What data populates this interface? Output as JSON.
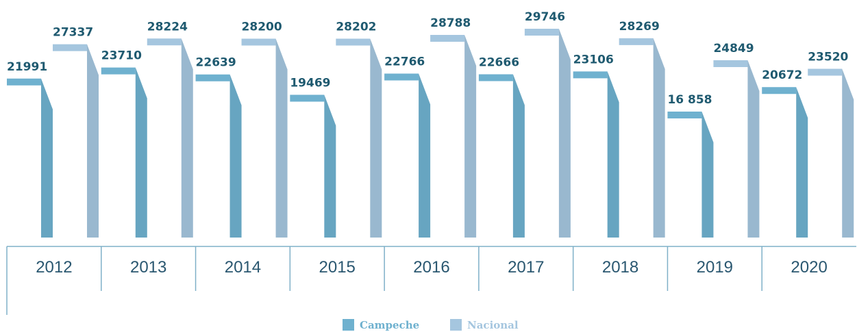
{
  "chart_data": {
    "type": "bar",
    "categories": [
      "2012",
      "2013",
      "2014",
      "2015",
      "2016",
      "2017",
      "2018",
      "2019",
      "2020"
    ],
    "series": [
      {
        "name": "Campeche",
        "color": "#6fb1cf",
        "values": [
          21991,
          23710,
          22639,
          19469,
          22766,
          22666,
          23106,
          16858,
          20672
        ],
        "value_labels": [
          "21991",
          "23710",
          "22639",
          "19469",
          "22766",
          "22666",
          "23106",
          "16 858",
          "20672"
        ]
      },
      {
        "name": "Nacional",
        "color": "#a5c6df",
        "values": [
          27337,
          28224,
          28200,
          28202,
          28788,
          29746,
          28269,
          24849,
          23520
        ]
      }
    ]
  }
}
